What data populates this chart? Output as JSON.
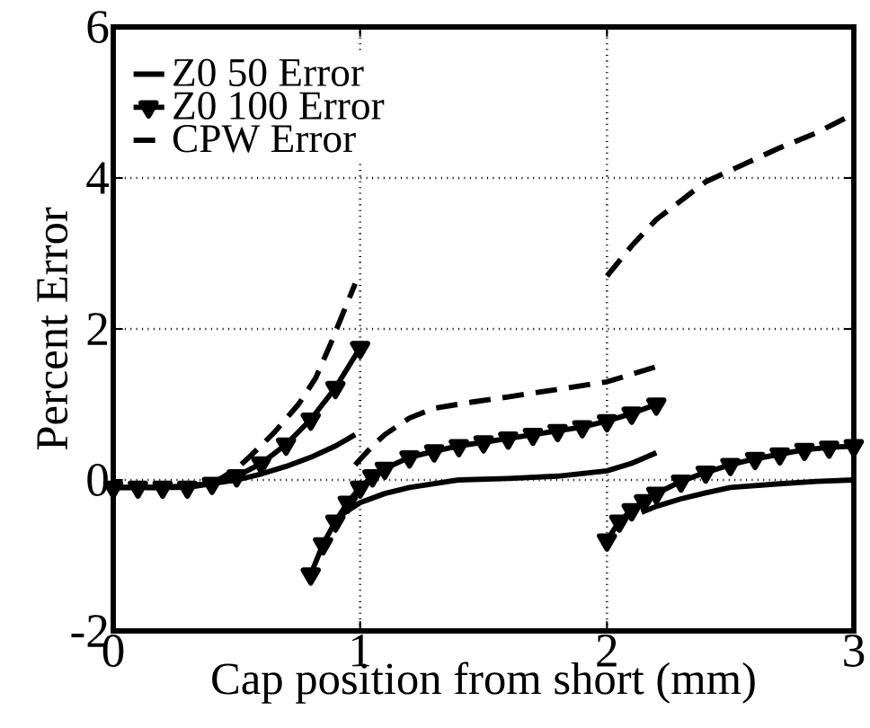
{
  "chart_data": {
    "type": "line",
    "xlabel": "Cap position from short (mm)",
    "ylabel": "Percent Error",
    "xlim": [
      0,
      3
    ],
    "ylim": [
      -2,
      6
    ],
    "xticks": [
      0,
      1,
      2,
      3
    ],
    "yticks": [
      -2,
      0,
      2,
      4,
      6
    ],
    "grid": true,
    "legend": "top left",
    "series": [
      {
        "name": "Z0 50 Error",
        "color": "#000000",
        "line_style": "solid",
        "x": [
          0,
          0.2,
          0.4,
          0.5,
          0.6,
          0.7,
          0.8,
          0.9,
          0.98
        ],
        "values": [
          -0.1,
          -0.1,
          -0.05,
          0,
          0.08,
          0.18,
          0.3,
          0.45,
          0.6
        ]
      },
      {
        "name": "Z0 100 Error",
        "color": "#000000",
        "line_style": "solid",
        "marker": "triangle",
        "x": [
          0,
          0.1,
          0.2,
          0.3,
          0.4,
          0.5,
          0.6,
          0.7,
          0.8,
          0.9,
          1.0
        ],
        "values": [
          -0.1,
          -0.1,
          -0.1,
          -0.1,
          -0.05,
          0.05,
          0.22,
          0.47,
          0.8,
          1.22,
          1.75
        ]
      },
      {
        "name": "CPW Error",
        "color": "#000000",
        "line_style": "dashed",
        "x": [
          0,
          0.2,
          0.4,
          0.5,
          0.55,
          0.65,
          0.75,
          0.82,
          0.88,
          0.93,
          0.98
        ],
        "values": [
          -0.1,
          -0.1,
          -0.05,
          0.15,
          0.3,
          0.62,
          1.0,
          1.35,
          1.8,
          2.2,
          2.6
        ]
      },
      {
        "color": "#000000",
        "line_style": "solid",
        "x": [
          0.93,
          1.0,
          1.1,
          1.2,
          1.4,
          1.6,
          1.8,
          2.0,
          2.1,
          2.2
        ],
        "values": [
          -0.45,
          -0.3,
          -0.18,
          -0.1,
          0,
          0.02,
          0.05,
          0.12,
          0.22,
          0.36
        ]
      },
      {
        "color": "#000000",
        "line_style": "solid",
        "x": [
          2.14,
          2.2,
          2.3,
          2.4,
          2.5,
          2.7,
          2.85,
          3.0
        ],
        "values": [
          -0.43,
          -0.35,
          -0.25,
          -0.17,
          -0.1,
          -0.05,
          -0.02,
          0
        ]
      },
      {
        "color": "#000000",
        "line_style": "solid",
        "marker": "triangle",
        "x": [
          0.8,
          0.85,
          0.9,
          0.95,
          1.0,
          1.05,
          1.1,
          1.2,
          1.3,
          1.4,
          1.5,
          1.6,
          1.7,
          1.8,
          1.9,
          2.0,
          2.1,
          2.2
        ],
        "values": [
          -1.25,
          -0.85,
          -0.55,
          -0.3,
          -0.1,
          0.05,
          0.15,
          0.3,
          0.38,
          0.45,
          0.5,
          0.55,
          0.6,
          0.65,
          0.7,
          0.78,
          0.88,
          1.0
        ]
      },
      {
        "color": "#000000",
        "line_style": "solid",
        "marker": "triangle",
        "x": [
          2.0,
          2.05,
          2.1,
          2.15,
          2.2,
          2.3,
          2.4,
          2.5,
          2.6,
          2.7,
          2.8,
          2.9,
          3.0
        ],
        "values": [
          -0.8,
          -0.55,
          -0.4,
          -0.28,
          -0.18,
          -0.02,
          0.1,
          0.2,
          0.28,
          0.34,
          0.4,
          0.43,
          0.45
        ]
      },
      {
        "color": "#000000",
        "line_style": "dashed",
        "x": [
          0.98,
          1.05,
          1.1,
          1.2,
          1.3,
          1.45,
          1.6,
          1.8,
          2.0,
          2.2
        ],
        "values": [
          0.2,
          0.45,
          0.6,
          0.82,
          0.95,
          1.03,
          1.1,
          1.2,
          1.3,
          1.5
        ]
      },
      {
        "color": "#000000",
        "line_style": "dashed",
        "x": [
          2.0,
          2.05,
          2.1,
          2.2,
          2.3,
          2.4,
          2.5,
          2.6,
          2.7,
          2.85,
          3.0
        ],
        "values": [
          2.7,
          2.9,
          3.1,
          3.45,
          3.7,
          3.95,
          4.1,
          4.25,
          4.4,
          4.6,
          4.85
        ]
      }
    ]
  }
}
